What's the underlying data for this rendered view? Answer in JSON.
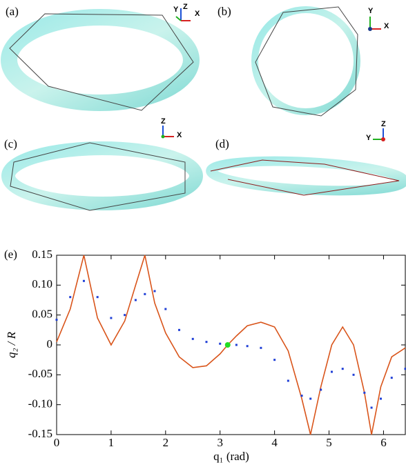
{
  "panels": [
    {
      "label": "(a)",
      "axes": [
        "Y",
        "Z",
        "X"
      ]
    },
    {
      "label": "(b)",
      "axes": [
        "Y",
        "X"
      ]
    },
    {
      "label": "(c)",
      "axes": [
        "Z",
        "X"
      ]
    },
    {
      "label": "(d)",
      "axes": [
        "Z",
        "Y"
      ]
    }
  ],
  "chart_data": {
    "type": "line",
    "label": "(e)",
    "x_label": "q₁ (rad)",
    "y_label": "q₂ / R",
    "x": [
      0,
      0.25,
      0.5,
      0.75,
      1.0,
      1.25,
      1.45,
      1.62,
      1.8,
      2.0,
      2.25,
      2.5,
      2.75,
      3.0,
      3.14,
      3.3,
      3.5,
      3.75,
      4.0,
      4.25,
      4.5,
      4.66,
      4.85,
      5.05,
      5.25,
      5.45,
      5.65,
      5.78,
      5.95,
      6.15,
      6.4
    ],
    "series": [
      {
        "color": "#d9541a",
        "style": "line",
        "values": [
          0.005,
          0.06,
          0.15,
          0.045,
          0.0,
          0.04,
          0.1,
          0.15,
          0.07,
          0.02,
          -0.02,
          -0.038,
          -0.035,
          -0.015,
          0.0,
          0.015,
          0.032,
          0.038,
          0.03,
          -0.01,
          -0.09,
          -0.15,
          -0.07,
          0.0,
          0.03,
          0.0,
          -0.08,
          -0.15,
          -0.07,
          -0.02,
          -0.005
        ]
      },
      {
        "color": "#1f3fd6",
        "style": "dots",
        "values": [
          0.042,
          0.08,
          0.107,
          0.08,
          0.045,
          0.05,
          0.075,
          0.085,
          0.09,
          0.06,
          0.025,
          0.01,
          0.005,
          0.002,
          0.0,
          0.0,
          -0.002,
          -0.005,
          -0.025,
          -0.06,
          -0.085,
          -0.09,
          -0.075,
          -0.045,
          -0.04,
          -0.05,
          -0.08,
          -0.105,
          -0.09,
          -0.055,
          -0.04
        ]
      }
    ],
    "marker": {
      "x": 3.14,
      "y": 0,
      "color": "#22dd22"
    },
    "xlim": [
      0,
      6.4
    ],
    "ylim": [
      -0.15,
      0.15
    ],
    "xticks": [
      0,
      1,
      2,
      3,
      4,
      5,
      6
    ],
    "yticks": [
      0.15,
      {
        "value": 0.1,
        "label": "0.10"
      },
      0.05,
      0,
      -0.05,
      {
        "value": -0.1,
        "label": "-0.10"
      },
      -0.15
    ],
    "grid": false
  }
}
